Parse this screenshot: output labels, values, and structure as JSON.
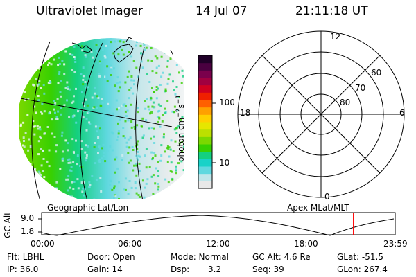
{
  "header": {
    "instrument": "Ultraviolet Imager",
    "date": "14 Jul 07",
    "time": "21:11:18 UT"
  },
  "colorbar": {
    "unit_label": "photon cm-2s-1",
    "ticks": [
      "100",
      "10"
    ],
    "colors": [
      "#e8e8e8",
      "#bfe6ea",
      "#5fd8df",
      "#18d2c8",
      "#14d080",
      "#38d000",
      "#7cd800",
      "#bce000",
      "#e6e600",
      "#ffd000",
      "#ffa000",
      "#ff6000",
      "#f02000",
      "#d00020",
      "#a00040",
      "#7a004c",
      "#4a0040",
      "#200028"
    ]
  },
  "polar_plot": {
    "mlt_labels": {
      "top": "12",
      "bottom": "0",
      "left": "18",
      "right": "6"
    },
    "lat_labels": [
      "60",
      "70",
      "80"
    ]
  },
  "timeline": {
    "left_title": "Geographic Lat/Lon",
    "right_title": "Apex MLat/MLT",
    "yaxis_label": "GC Alt",
    "y_ticks": [
      "9.0",
      "1.8"
    ],
    "x_ticks": [
      "00:00",
      "06:00",
      "12:00",
      "18:00",
      "23:59"
    ],
    "current_time_fraction": 0.882,
    "marker_color": "#ff0000"
  },
  "info": {
    "flt": "Flt: LBHL",
    "ip": "IP: 36.0",
    "door": "Door: Open",
    "gain": "Gain: 14",
    "mode": "Mode: Normal",
    "dsp_label": "Dsp:",
    "dsp_value": "3.2",
    "gc_alt": "GC Alt: 4.6 Re",
    "seq": "Seq: 39",
    "glat": "GLat: -51.5",
    "glon": "GLon: 267.4"
  }
}
